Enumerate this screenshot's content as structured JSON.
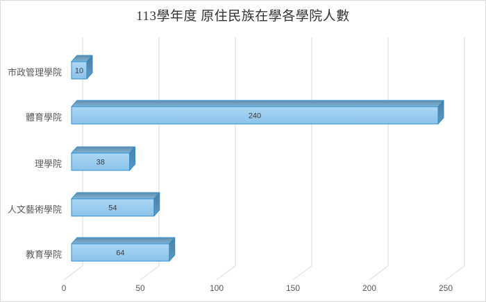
{
  "title": "113學年度 原住民族在學各學院人數",
  "chart_data": {
    "type": "bar",
    "orientation": "horizontal",
    "style": "3d",
    "title": "113學年度 原住民族在學各學院人數",
    "categories": [
      "市政管理學院",
      "體育學院",
      "理學院",
      "人文藝術學院",
      "教育學院"
    ],
    "values": [
      10,
      240,
      38,
      54,
      64
    ],
    "data_labels": [
      "10",
      "240",
      "38",
      "54",
      "64"
    ],
    "x_ticks": [
      "0",
      "50",
      "100",
      "150",
      "200",
      "250"
    ],
    "xlim": [
      0,
      250
    ],
    "xlabel": "",
    "ylabel": "",
    "legend": "none",
    "grid": true,
    "colors": {
      "bar_front_light": "#ABD7F4",
      "bar_front_dark": "#8CC2E9",
      "bar_top_dark": "#608CA9",
      "bar_top_light": "#83B4D5",
      "bar_side_dark": "#4B7EA4",
      "bar_side_light": "#5F99C0",
      "bar_border": "#2D8ED0",
      "gridline": "#D9D9D9",
      "tick_label": "#595959",
      "category_label": "#595959",
      "data_label": "#3A3A3A",
      "title": "#333333"
    }
  }
}
